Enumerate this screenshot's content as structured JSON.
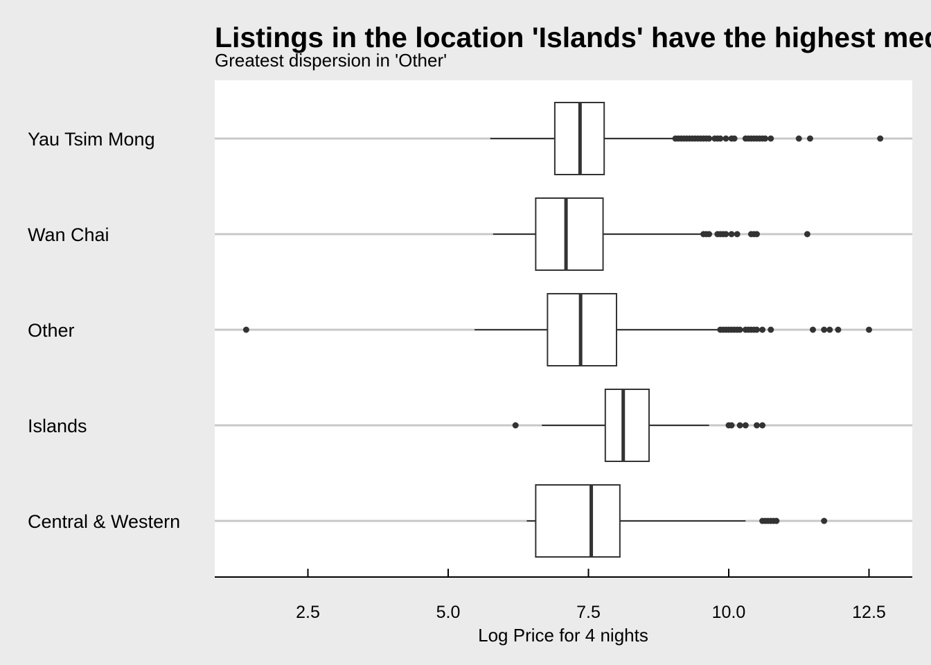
{
  "chart_data": {
    "type": "boxplot",
    "orientation": "horizontal",
    "title": "Listings in the location 'Islands' have the highest median price",
    "subtitle": "Greatest dispersion in 'Other'",
    "xlabel": "Log Price for 4 nights",
    "ylabel": "",
    "xlim": [
      0.85,
      13.3
    ],
    "x_ticks": [
      2.5,
      5.0,
      7.5,
      10.0,
      12.5
    ],
    "x_tick_labels": [
      "2.5",
      "5.0",
      "7.5",
      "10.0",
      "12.5"
    ],
    "grid": "horizontal major gridlines only",
    "legend": "none",
    "colors": {
      "background": "#ebebeb",
      "panel": "#ffffff",
      "gridline": "#c8c8c8",
      "box_stroke": "#333333",
      "outlier": "#333333"
    },
    "categories": [
      "Yau Tsim Mong",
      "Wan Chai",
      "Other",
      "Islands",
      "Central & Western"
    ],
    "boxes": [
      {
        "category": "Yau Tsim Mong",
        "whisker_low": 5.75,
        "q1": 6.9,
        "median": 7.35,
        "q3": 7.78,
        "whisker_high": 9.05,
        "outliers": [
          9.05,
          9.1,
          9.15,
          9.2,
          9.25,
          9.3,
          9.35,
          9.4,
          9.45,
          9.5,
          9.55,
          9.6,
          9.65,
          9.75,
          9.8,
          9.85,
          9.95,
          10.05,
          10.1,
          10.3,
          10.35,
          10.4,
          10.45,
          10.5,
          10.55,
          10.6,
          10.65,
          10.75,
          11.25,
          11.45,
          12.7
        ]
      },
      {
        "category": "Wan Chai",
        "whisker_low": 5.8,
        "q1": 6.56,
        "median": 7.1,
        "q3": 7.76,
        "whisker_high": 9.5,
        "outliers": [
          9.55,
          9.6,
          9.65,
          9.8,
          9.85,
          9.9,
          9.95,
          10.05,
          10.15,
          10.4,
          10.45,
          10.5,
          11.4
        ]
      },
      {
        "category": "Other",
        "whisker_low": 5.47,
        "q1": 6.77,
        "median": 7.36,
        "q3": 8.0,
        "whisker_high": 9.85,
        "outliers": [
          1.4,
          9.85,
          9.9,
          9.95,
          10.0,
          10.05,
          10.1,
          10.15,
          10.2,
          10.3,
          10.35,
          10.4,
          10.45,
          10.5,
          10.6,
          10.75,
          11.5,
          11.7,
          11.8,
          11.95,
          12.5
        ]
      },
      {
        "category": "Islands",
        "whisker_low": 6.67,
        "q1": 7.8,
        "median": 8.12,
        "q3": 8.58,
        "whisker_high": 9.65,
        "outliers": [
          6.2,
          10.0,
          10.05,
          10.2,
          10.3,
          10.5,
          10.6
        ]
      },
      {
        "category": "Central & Western",
        "whisker_low": 6.4,
        "q1": 6.56,
        "median": 7.55,
        "q3": 8.06,
        "whisker_high": 10.3,
        "outliers": [
          10.6,
          10.65,
          10.7,
          10.75,
          10.8,
          10.85,
          11.7
        ]
      }
    ]
  }
}
